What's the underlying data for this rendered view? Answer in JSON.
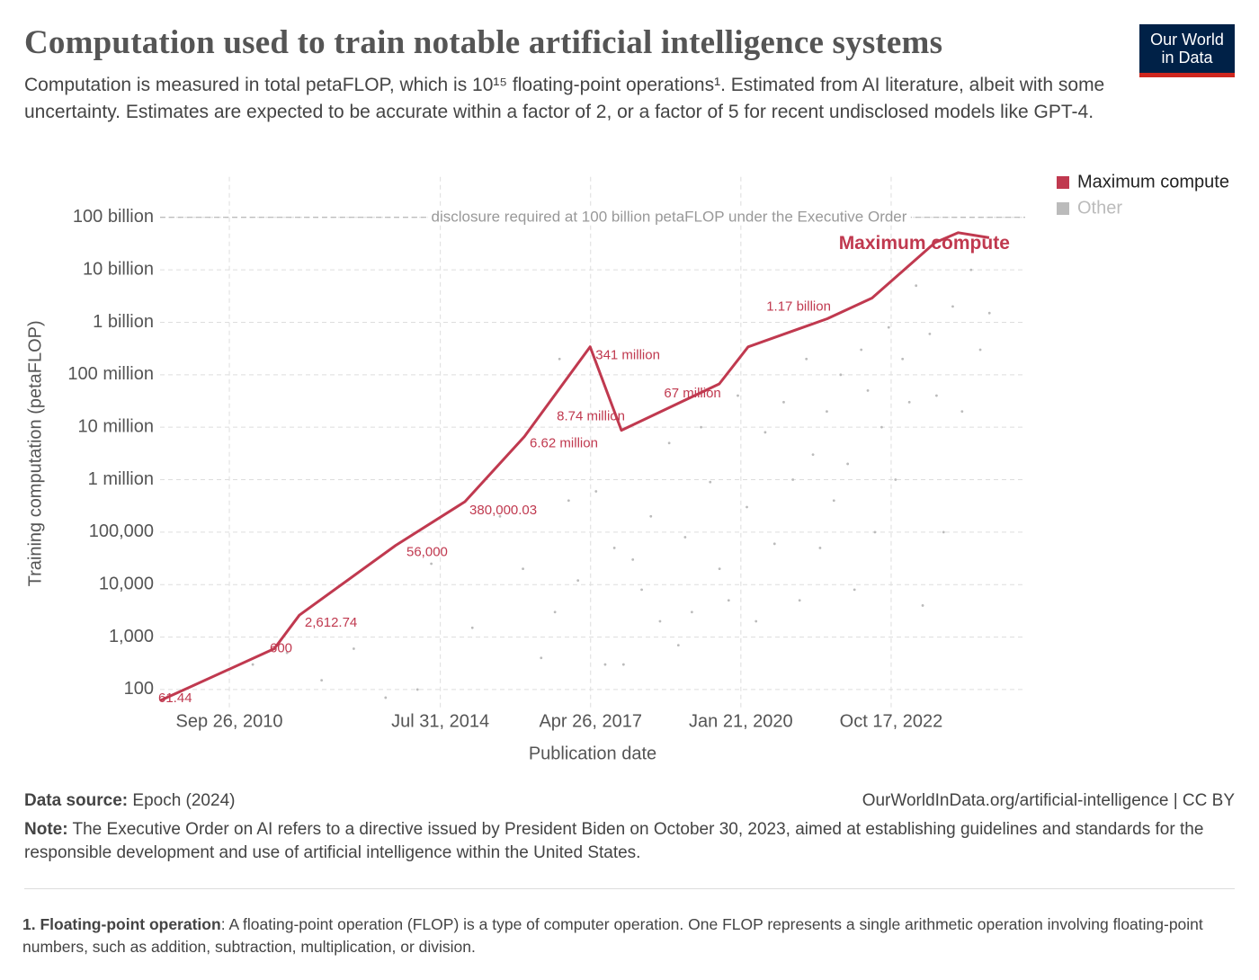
{
  "header": {
    "title": "Computation used to train notable artificial intelligence systems",
    "subtitle": "Computation is measured in total petaFLOP, which is 10¹⁵ floating-point operations¹. Estimated from AI literature, albeit with some uncertainty. Estimates are expected to be accurate within a factor of 2, or a factor of 5 for recent undisclosed models like GPT-4.",
    "logo": "Our World in Data"
  },
  "chart_data": {
    "type": "line",
    "y_label": "Training computation (petaFLOP)",
    "x_label": "Publication date",
    "annotation": {
      "text": "disclosure required at 100 billion petaFLOP under the Executive Order",
      "value": 100000000000
    },
    "log_y": true,
    "grid": true,
    "legend": "top-right",
    "xlim": [
      "2009-06-22",
      "2025-03-27"
    ],
    "xticks": [
      {
        "value": "2010-09-26",
        "label": "Sep 26, 2010"
      },
      {
        "value": "2014-07-31",
        "label": "Jul 31, 2014"
      },
      {
        "value": "2017-04-26",
        "label": "Apr 26, 2017"
      },
      {
        "value": "2020-01-21",
        "label": "Jan 21, 2020"
      },
      {
        "value": "2022-10-17",
        "label": "Oct 17, 2022"
      }
    ],
    "ylim": [
      49,
      520000000000
    ],
    "yticks": [
      100,
      {
        "value": 1000,
        "label": "1,000"
      },
      {
        "value": 10000,
        "label": "10,000"
      },
      {
        "value": 100000,
        "label": "100,000"
      },
      {
        "value": 1000000,
        "label": "1 million"
      },
      {
        "value": 10000000,
        "label": "10 million"
      },
      {
        "value": 100000000,
        "label": "100 million"
      },
      {
        "value": 1000000000,
        "label": "1 billion"
      },
      {
        "value": 10000000000,
        "label": "10 billion"
      },
      {
        "value": 100000000000,
        "label": "100 billion"
      }
    ],
    "series": [
      {
        "name": "Maximum compute",
        "type": "line",
        "color": "#c0394f",
        "x": [
          "2009-06-22",
          "2011-07-22",
          "2012-01-05",
          "2013-10-07",
          "2015-01-11",
          "2016-02-10",
          "2017-04-23",
          "2017-11-17",
          "2019-08-30",
          "2020-03-09",
          "2021-08-18",
          "2022-06-12",
          "2023-08-05",
          "2024-01-07",
          "2024-07-30"
        ],
        "values": [
          61.44,
          600,
          2612.74,
          56000,
          380000.03,
          6620000,
          341000000,
          8740000,
          67000000,
          340000000,
          1170000000,
          2900000000,
          33000000000,
          51000000000,
          41000000000
        ],
        "value_labels": [
          "61.44",
          "600",
          "2,612.74",
          "56,000",
          "380,000.03",
          "6.62 million",
          "341 million",
          "8.74 million",
          "67 million",
          null,
          "1.17 billion",
          null,
          null,
          null,
          null
        ]
      },
      {
        "name": "Other",
        "type": "scatter",
        "color": "#bbbbbb",
        "x": [
          "2011-03-01",
          "2011-10-15",
          "2012-06-01",
          "2013-01-01",
          "2013-08-01",
          "2014-03-01",
          "2014-06-01",
          "2015-03-01",
          "2015-09-01",
          "2016-02-01",
          "2016-06-01",
          "2016-09-01",
          "2016-10-01",
          "2016-12-01",
          "2017-02-01",
          "2017-06-01",
          "2017-08-01",
          "2017-10-01",
          "2017-12-01",
          "2018-02-01",
          "2018-04-01",
          "2018-06-01",
          "2018-08-01",
          "2018-10-01",
          "2018-12-01",
          "2019-01-15",
          "2019-03-01",
          "2019-05-01",
          "2019-07-01",
          "2019-09-01",
          "2019-11-01",
          "2020-01-01",
          "2020-03-01",
          "2020-05-01",
          "2020-07-01",
          "2020-09-01",
          "2020-11-01",
          "2021-01-01",
          "2021-02-15",
          "2021-04-01",
          "2021-05-15",
          "2021-07-01",
          "2021-08-15",
          "2021-10-01",
          "2021-11-15",
          "2022-01-01",
          "2022-02-15",
          "2022-04-01",
          "2022-05-15",
          "2022-07-01",
          "2022-08-15",
          "2022-10-01",
          "2022-11-15",
          "2023-01-01",
          "2023-02-15",
          "2023-04-01",
          "2023-05-15",
          "2023-07-01",
          "2023-08-15",
          "2023-10-01",
          "2023-12-01",
          "2024-02-01",
          "2024-04-01",
          "2024-06-01",
          "2024-08-01"
        ],
        "values": [
          300,
          500,
          150,
          600,
          70,
          100,
          25000,
          1500,
          200000,
          20000,
          400,
          3000,
          200000000,
          400000,
          12000,
          600000,
          300,
          50000,
          300,
          30000,
          8000,
          200000,
          2000,
          5000000,
          700,
          80000,
          3000,
          10000000,
          900000,
          20000,
          5000,
          40000000,
          300000,
          2000,
          8000000,
          60000,
          30000000,
          1000000,
          5000,
          200000000,
          3000000,
          50000,
          20000000,
          400000,
          100000000,
          2000000,
          8000,
          300000000,
          50000000,
          100000,
          10000000,
          800000000,
          1000000,
          200000000,
          30000000,
          5000000000,
          4000,
          600000000,
          40000000,
          100000,
          2000000000,
          20000000,
          10000000000,
          300000000,
          1500000000
        ]
      }
    ]
  },
  "footer": {
    "source_label": "Data source:",
    "source": "Epoch (2024)",
    "url": "OurWorldInData.org/artificial-intelligence | CC BY",
    "note_label": "Note:",
    "note": "The Executive Order on AI refers to a directive issued by President Biden on October 30, 2023, aimed at establishing guidelines and standards for the responsible development and use of artificial intelligence within the United States."
  },
  "footnote": {
    "label": "1. Floating-point operation",
    "text": ": A floating-point operation (FLOP) is a type of computer operation. One FLOP represents a single arithmetic operation involving floating-point numbers, such as addition, subtraction, multiplication, or division."
  }
}
